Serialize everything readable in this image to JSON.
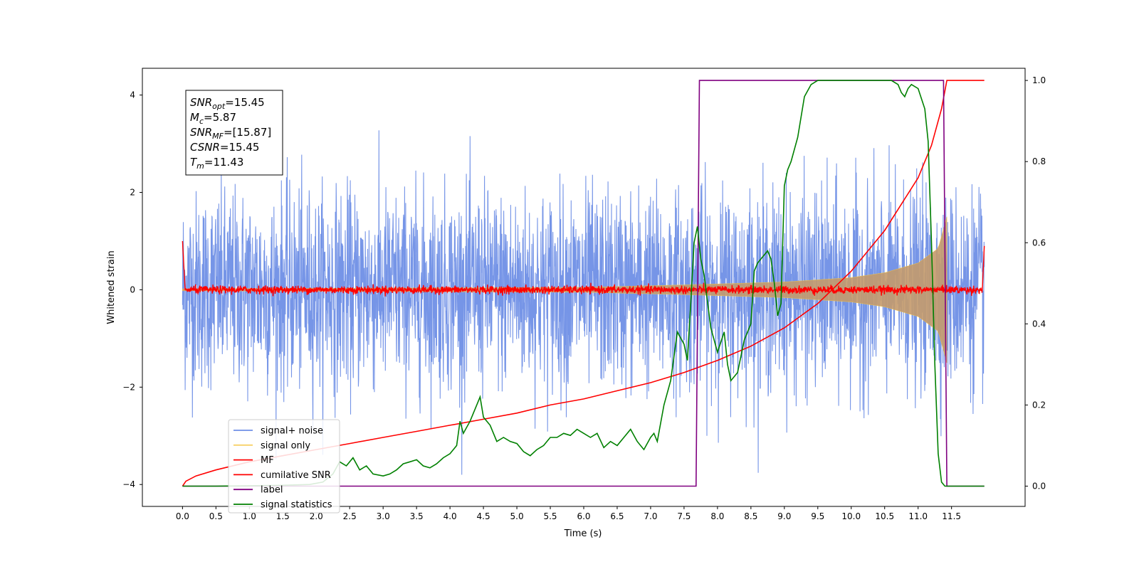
{
  "chart_data": {
    "type": "line",
    "xlabel": "Time (s)",
    "ylabel_left": "Whitened strain",
    "ylabel_right": "",
    "xlim": [
      -0.6,
      12.6
    ],
    "ylim_left": [
      -4.45,
      4.55
    ],
    "ylim_right": [
      -0.05,
      1.03
    ],
    "x_ticks": [
      0.0,
      0.5,
      1.0,
      1.5,
      2.0,
      2.5,
      3.0,
      3.5,
      4.0,
      4.5,
      5.0,
      5.5,
      6.0,
      6.5,
      7.0,
      7.5,
      8.0,
      8.5,
      9.0,
      9.5,
      10.0,
      10.5,
      11.0,
      11.5
    ],
    "x_tick_labels": [
      "0.0",
      "0.5",
      "1.0",
      "1.5",
      "2.0",
      "2.5",
      "3.0",
      "3.5",
      "4.0",
      "4.5",
      "5.0",
      "5.5",
      "6.0",
      "6.5",
      "7.0",
      "7.5",
      "8.0",
      "8.5",
      "9.0",
      "9.5",
      "10.0",
      "10.5",
      "11.0",
      "11.5"
    ],
    "y_ticks_left": [
      -4,
      -2,
      0,
      2,
      4
    ],
    "y_tick_labels_left": [
      "−4",
      "−2",
      "0",
      "2",
      "4"
    ],
    "y_ticks_right": [
      0.0,
      0.2,
      0.4,
      0.6,
      0.8,
      1.0
    ],
    "y_tick_labels_right": [
      "0.0",
      "0.2",
      "0.4",
      "0.6",
      "0.8",
      "1.0"
    ],
    "grid": false,
    "legend_position": "lower-left",
    "annotation_box": [
      {
        "base": "SNR",
        "sub": "opt",
        "value": "=15.45"
      },
      {
        "base": "M",
        "sub": "c",
        "value": "=5.87"
      },
      {
        "base": "SNR",
        "sub": "MF",
        "value": "=[15.87]"
      },
      {
        "base": "CSNR",
        "sub": "",
        "value": "=15.45"
      },
      {
        "base": "T",
        "sub": "m",
        "value": "=11.43"
      }
    ],
    "series": [
      {
        "name": "signal+ noise",
        "color": "#6f8fe6",
        "axis": "left",
        "kind": "noise",
        "t_start": 0.0,
        "t_end": 11.99,
        "typical_amplitude": 1.0,
        "peak_range": [
          -3.8,
          3.9
        ]
      },
      {
        "name": "signal only",
        "color": "#f5c542",
        "axis": "left",
        "kind": "chirp",
        "t_start": 0.0,
        "t_end": 11.43,
        "envelope": {
          "x": [
            0.0,
            6.0,
            7.5,
            9.0,
            10.0,
            10.5,
            11.0,
            11.3,
            11.43
          ],
          "y": [
            0.02,
            0.05,
            0.1,
            0.16,
            0.25,
            0.35,
            0.55,
            0.85,
            1.5
          ]
        }
      },
      {
        "name": "MF",
        "color": "#ff0000",
        "axis": "left",
        "kind": "mf",
        "t_start": 0.0,
        "t_end": 11.99,
        "start_value": 1.0,
        "end_value": 0.9,
        "noise_amplitude": 0.08
      },
      {
        "name": "cumilative SNR",
        "color": "#ff0000",
        "axis": "right",
        "kind": "line",
        "x": [
          0.0,
          0.05,
          0.2,
          0.5,
          1.0,
          1.5,
          2.0,
          2.5,
          3.0,
          3.5,
          4.0,
          4.5,
          5.0,
          5.5,
          6.0,
          6.5,
          7.0,
          7.5,
          8.0,
          8.5,
          9.0,
          9.5,
          10.0,
          10.5,
          11.0,
          11.2,
          11.35,
          11.43,
          11.99
        ],
        "y": [
          0.0,
          0.012,
          0.025,
          0.04,
          0.06,
          0.075,
          0.09,
          0.105,
          0.12,
          0.135,
          0.15,
          0.165,
          0.18,
          0.2,
          0.215,
          0.235,
          0.255,
          0.28,
          0.31,
          0.345,
          0.39,
          0.45,
          0.53,
          0.63,
          0.76,
          0.84,
          0.93,
          1.0,
          1.0
        ]
      },
      {
        "name": "label",
        "color": "#800080",
        "axis": "right",
        "kind": "line",
        "x": [
          0.0,
          7.68,
          7.73,
          11.38,
          11.43,
          11.99
        ],
        "y": [
          0.0,
          0.0,
          1.0,
          1.0,
          0.0,
          0.0
        ]
      },
      {
        "name": "signal statistics",
        "color": "#008000",
        "axis": "right",
        "kind": "line",
        "x": [
          0.0,
          0.5,
          1.0,
          1.5,
          1.9,
          2.1,
          2.25,
          2.35,
          2.45,
          2.55,
          2.65,
          2.75,
          2.85,
          3.0,
          3.1,
          3.2,
          3.3,
          3.4,
          3.5,
          3.6,
          3.7,
          3.8,
          3.9,
          4.0,
          4.1,
          4.15,
          4.2,
          4.3,
          4.4,
          4.45,
          4.5,
          4.6,
          4.7,
          4.8,
          4.9,
          5.0,
          5.1,
          5.2,
          5.3,
          5.4,
          5.5,
          5.6,
          5.7,
          5.8,
          5.9,
          6.0,
          6.1,
          6.2,
          6.3,
          6.4,
          6.5,
          6.6,
          6.7,
          6.8,
          6.9,
          7.0,
          7.05,
          7.1,
          7.2,
          7.3,
          7.4,
          7.5,
          7.55,
          7.6,
          7.65,
          7.7,
          7.75,
          7.8,
          7.9,
          8.0,
          8.1,
          8.15,
          8.2,
          8.3,
          8.4,
          8.5,
          8.55,
          8.6,
          8.7,
          8.75,
          8.8,
          8.85,
          8.9,
          8.95,
          9.0,
          9.05,
          9.1,
          9.2,
          9.3,
          9.4,
          9.5,
          9.7,
          10.0,
          10.3,
          10.6,
          10.7,
          10.75,
          10.8,
          10.85,
          10.9,
          11.0,
          11.1,
          11.15,
          11.2,
          11.25,
          11.3,
          11.35,
          11.4,
          11.99
        ],
        "y": [
          0.0,
          0.0,
          0.001,
          0.002,
          0.004,
          0.01,
          0.03,
          0.06,
          0.05,
          0.07,
          0.04,
          0.05,
          0.03,
          0.025,
          0.03,
          0.04,
          0.055,
          0.06,
          0.065,
          0.05,
          0.045,
          0.055,
          0.07,
          0.08,
          0.1,
          0.16,
          0.13,
          0.16,
          0.2,
          0.22,
          0.17,
          0.15,
          0.11,
          0.12,
          0.11,
          0.105,
          0.085,
          0.075,
          0.09,
          0.1,
          0.12,
          0.12,
          0.13,
          0.125,
          0.14,
          0.13,
          0.12,
          0.13,
          0.095,
          0.11,
          0.1,
          0.12,
          0.14,
          0.11,
          0.09,
          0.12,
          0.13,
          0.11,
          0.2,
          0.26,
          0.38,
          0.35,
          0.31,
          0.45,
          0.6,
          0.64,
          0.56,
          0.52,
          0.39,
          0.33,
          0.38,
          0.3,
          0.26,
          0.28,
          0.36,
          0.4,
          0.53,
          0.55,
          0.57,
          0.58,
          0.56,
          0.5,
          0.42,
          0.45,
          0.74,
          0.78,
          0.8,
          0.86,
          0.96,
          0.99,
          1.0,
          1.0,
          1.0,
          1.0,
          1.0,
          0.99,
          0.97,
          0.96,
          0.98,
          0.99,
          0.98,
          0.93,
          0.85,
          0.6,
          0.3,
          0.08,
          0.01,
          0.0,
          0.0
        ]
      }
    ]
  }
}
